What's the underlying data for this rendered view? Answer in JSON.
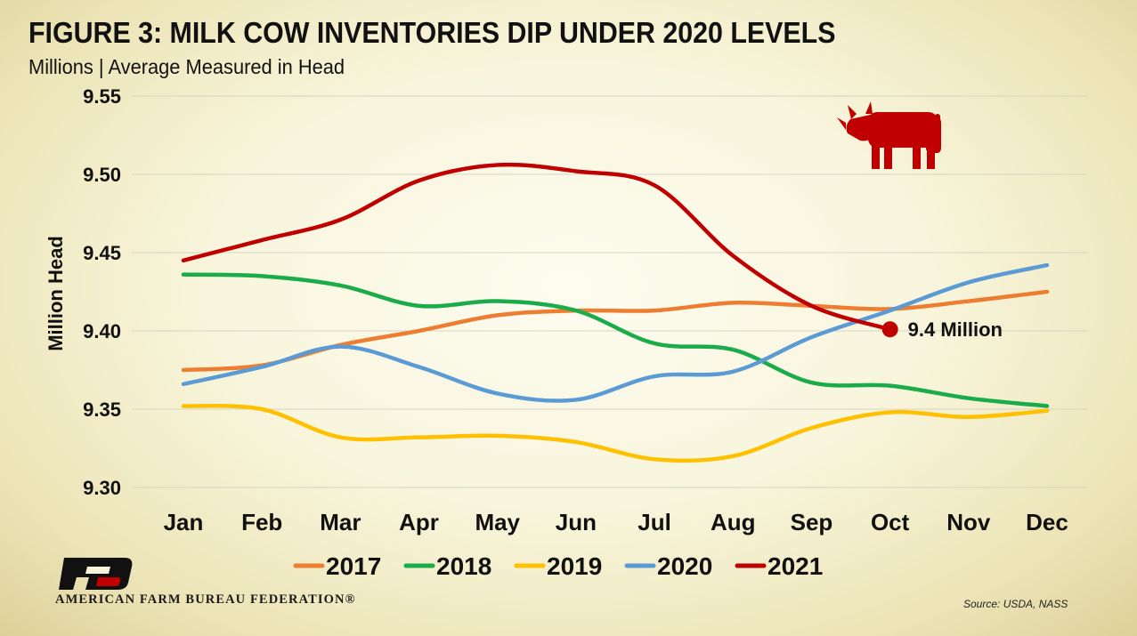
{
  "title": "FIGURE 3: MILK COW INVENTORIES DIP UNDER 2020 LEVELS",
  "subtitle": "Millions | Average Measured in Head",
  "source": "Source: USDA, NASS",
  "organization": "AMERICAN FARM BUREAU FEDERATION®",
  "logo_icon": "afbf-logo-icon",
  "cow_icon": "cow-icon",
  "chart_data": {
    "type": "line",
    "ylabel": "Million Head",
    "ylim": [
      9.3,
      9.55
    ],
    "yticks": [
      9.3,
      9.35,
      9.4,
      9.45,
      9.5,
      9.55
    ],
    "categories": [
      "Jan",
      "Feb",
      "Mar",
      "Apr",
      "May",
      "Jun",
      "Jul",
      "Aug",
      "Sep",
      "Oct",
      "Nov",
      "Dec"
    ],
    "grid": true,
    "legend_position": "bottom",
    "series": [
      {
        "name": "2017",
        "color": "#ed7d31",
        "values": [
          9.375,
          9.378,
          9.391,
          9.4,
          9.41,
          9.413,
          9.413,
          9.418,
          9.416,
          9.414,
          9.419,
          9.425
        ]
      },
      {
        "name": "2018",
        "color": "#1aab4b",
        "values": [
          9.436,
          9.435,
          9.429,
          9.416,
          9.419,
          9.413,
          9.392,
          9.388,
          9.367,
          9.365,
          9.357,
          9.352
        ]
      },
      {
        "name": "2019",
        "color": "#ffc000",
        "values": [
          9.352,
          9.35,
          9.332,
          9.332,
          9.333,
          9.329,
          9.318,
          9.32,
          9.338,
          9.348,
          9.345,
          9.349
        ]
      },
      {
        "name": "2020",
        "color": "#5b9bd5",
        "values": [
          9.366,
          9.377,
          9.39,
          9.377,
          9.36,
          9.356,
          9.371,
          9.374,
          9.396,
          9.413,
          9.431,
          9.442
        ]
      },
      {
        "name": "2021",
        "color": "#c00000",
        "values": [
          9.445,
          9.458,
          9.471,
          9.496,
          9.506,
          9.502,
          9.493,
          9.448,
          9.416,
          9.401,
          null,
          null
        ]
      }
    ],
    "annotation": {
      "text": "9.4 Million",
      "category": "Oct",
      "value": 9.401,
      "series": "2021"
    }
  }
}
